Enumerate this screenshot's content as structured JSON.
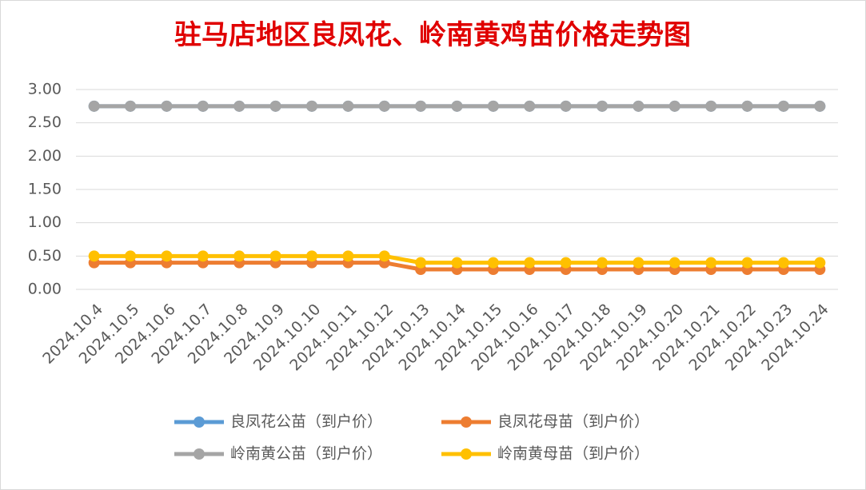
{
  "chart_data": {
    "type": "line",
    "title": "驻马店地区良凤花、岭南黄鸡苗价格走势图",
    "categories": [
      "2024.10.4",
      "2024.10.5",
      "2024.10.6",
      "2024.10.7",
      "2024.10.8",
      "2024.10.9",
      "2024.10.10",
      "2024.10.11",
      "2024.10.12",
      "2024.10.13",
      "2024.10.14",
      "2024.10.15",
      "2024.10.16",
      "2024.10.17",
      "2024.10.18",
      "2024.10.19",
      "2024.10.20",
      "2024.10.21",
      "2024.10.22",
      "2024.10.23",
      "2024.10.24"
    ],
    "series": [
      {
        "name": "良凤花公苗（到户价）",
        "color": "#5b9bd5",
        "values": [
          2.75,
          2.75,
          2.75,
          2.75,
          2.75,
          2.75,
          2.75,
          2.75,
          2.75,
          2.75,
          2.75,
          2.75,
          2.75,
          2.75,
          2.75,
          2.75,
          2.75,
          2.75,
          2.75,
          2.75,
          2.75
        ]
      },
      {
        "name": "良凤花母苗（到户价）",
        "color": "#ed7d31",
        "values": [
          0.4,
          0.4,
          0.4,
          0.4,
          0.4,
          0.4,
          0.4,
          0.4,
          0.4,
          0.3,
          0.3,
          0.3,
          0.3,
          0.3,
          0.3,
          0.3,
          0.3,
          0.3,
          0.3,
          0.3,
          0.3
        ]
      },
      {
        "name": "岭南黄公苗（到户价）",
        "color": "#a5a5a5",
        "values": [
          2.75,
          2.75,
          2.75,
          2.75,
          2.75,
          2.75,
          2.75,
          2.75,
          2.75,
          2.75,
          2.75,
          2.75,
          2.75,
          2.75,
          2.75,
          2.75,
          2.75,
          2.75,
          2.75,
          2.75,
          2.75
        ]
      },
      {
        "name": "岭南黄母苗（到户价）",
        "color": "#ffc000",
        "values": [
          0.5,
          0.5,
          0.5,
          0.5,
          0.5,
          0.5,
          0.5,
          0.5,
          0.5,
          0.4,
          0.4,
          0.4,
          0.4,
          0.4,
          0.4,
          0.4,
          0.4,
          0.4,
          0.4,
          0.4,
          0.4
        ]
      }
    ],
    "ylim": [
      0,
      3
    ],
    "yticks": [
      {
        "value": 0,
        "label": "0.00"
      },
      {
        "value": 0.5,
        "label": "0.50"
      },
      {
        "value": 1,
        "label": "1.00"
      },
      {
        "value": 1.5,
        "label": "1.50"
      },
      {
        "value": 2,
        "label": "2.00"
      },
      {
        "value": 2.5,
        "label": "2.50"
      },
      {
        "value": 3,
        "label": "3.00"
      }
    ],
    "grid": true,
    "legend": "bottom"
  }
}
